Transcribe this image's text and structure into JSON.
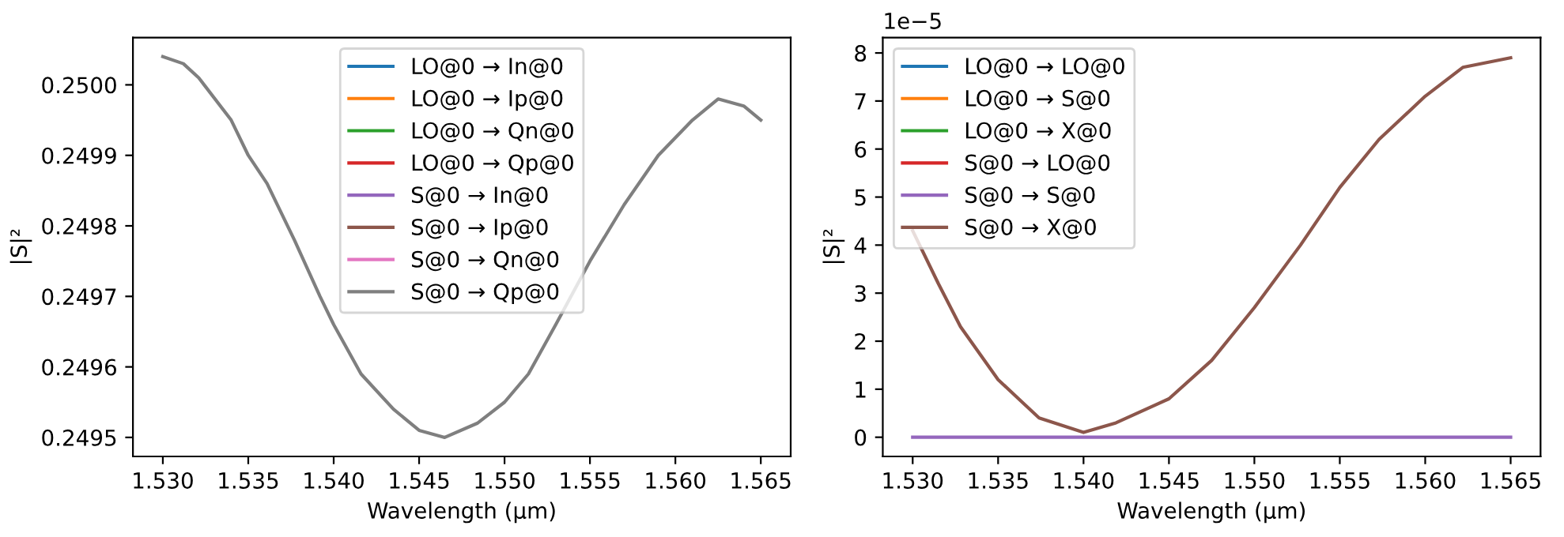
{
  "chart_data": [
    {
      "type": "line",
      "xlabel": "Wavelength (µm)",
      "ylabel": "|S|²",
      "legend": "top",
      "x": [
        1.53,
        1.5312,
        1.5321,
        1.534,
        1.535,
        1.5361,
        1.5377,
        1.5392,
        1.54,
        1.5416,
        1.5435,
        1.545,
        1.5465,
        1.5484,
        1.55,
        1.5514,
        1.553,
        1.555,
        1.557,
        1.559,
        1.561,
        1.5625,
        1.564,
        1.565
      ],
      "xlim": [
        1.52825,
        1.56675
      ],
      "xticks": [
        {
          "value": 1.53,
          "label": "1.530"
        },
        {
          "value": 1.535,
          "label": "1.535"
        },
        {
          "value": 1.54,
          "label": "1.540"
        },
        {
          "value": 1.545,
          "label": "1.545"
        },
        {
          "value": 1.55,
          "label": "1.550"
        },
        {
          "value": 1.555,
          "label": "1.555"
        },
        {
          "value": 1.56,
          "label": "1.560"
        },
        {
          "value": 1.565,
          "label": "1.565"
        }
      ],
      "ylim": [
        0.249473,
        0.250067
      ],
      "yticks": [
        {
          "value": 0.2495,
          "label": "0.2495"
        },
        {
          "value": 0.2496,
          "label": "0.2496"
        },
        {
          "value": 0.2497,
          "label": "0.2497"
        },
        {
          "value": 0.2498,
          "label": "0.2498"
        },
        {
          "value": 0.2499,
          "label": "0.2499"
        },
        {
          "value": 0.25,
          "label": "0.2500"
        }
      ],
      "series": [
        {
          "name": "LO@0 → In@0",
          "color": "#1f77b4",
          "values": [
            null,
            null,
            null,
            null,
            null,
            null,
            null,
            null,
            null,
            null,
            null,
            null,
            null,
            null,
            null,
            null,
            null,
            null,
            null,
            null,
            null,
            null,
            null,
            null
          ]
        },
        {
          "name": "LO@0 → Ip@0",
          "color": "#ff7f0e",
          "values": [
            null,
            null,
            null,
            null,
            null,
            null,
            null,
            null,
            null,
            null,
            null,
            null,
            null,
            null,
            null,
            null,
            null,
            null,
            null,
            null,
            null,
            null,
            null,
            null
          ]
        },
        {
          "name": "LO@0 → Qn@0",
          "color": "#2ca02c",
          "values": [
            null,
            null,
            null,
            null,
            null,
            null,
            null,
            null,
            null,
            null,
            null,
            null,
            null,
            null,
            null,
            null,
            null,
            null,
            null,
            null,
            null,
            null,
            null,
            null
          ]
        },
        {
          "name": "LO@0 → Qp@0",
          "color": "#d62728",
          "values": [
            null,
            null,
            null,
            null,
            null,
            null,
            null,
            null,
            null,
            null,
            null,
            null,
            null,
            null,
            null,
            null,
            null,
            null,
            null,
            null,
            null,
            null,
            null,
            null
          ]
        },
        {
          "name": "S@0 → In@0",
          "color": "#9467bd",
          "values": [
            null,
            null,
            null,
            null,
            null,
            null,
            null,
            null,
            null,
            null,
            null,
            null,
            null,
            null,
            null,
            null,
            null,
            null,
            null,
            null,
            null,
            null,
            null,
            null
          ]
        },
        {
          "name": "S@0 → Ip@0",
          "color": "#8c564b",
          "values": [
            null,
            null,
            null,
            null,
            null,
            null,
            null,
            null,
            null,
            null,
            null,
            null,
            null,
            null,
            null,
            null,
            null,
            null,
            null,
            null,
            null,
            null,
            null,
            null
          ]
        },
        {
          "name": "S@0 → Qn@0",
          "color": "#e377c2",
          "values": [
            null,
            null,
            null,
            null,
            null,
            null,
            null,
            null,
            null,
            null,
            null,
            null,
            null,
            null,
            null,
            null,
            null,
            null,
            null,
            null,
            null,
            null,
            null,
            null
          ]
        },
        {
          "name": "S@0 → Qp@0",
          "color": "#7f7f7f",
          "values": [
            0.25004,
            0.25003,
            0.25001,
            0.24995,
            0.2499,
            0.24986,
            0.24978,
            0.2497,
            0.24966,
            0.24959,
            0.24954,
            0.24951,
            0.2495,
            0.24952,
            0.24955,
            0.24959,
            0.24966,
            0.24975,
            0.24983,
            0.2499,
            0.24995,
            0.24998,
            0.24997,
            0.24995
          ]
        }
      ]
    },
    {
      "type": "line",
      "xlabel": "Wavelength (µm)",
      "ylabel": "|S|²",
      "legend": "top left",
      "annotations": [
        "1e−5"
      ],
      "x": [
        1.53,
        1.5315,
        1.5328,
        1.535,
        1.5374,
        1.54,
        1.5419,
        1.545,
        1.5475,
        1.55,
        1.5527,
        1.555,
        1.5573,
        1.56,
        1.5622,
        1.565
      ],
      "xlim": [
        1.52825,
        1.56675
      ],
      "xticks": [
        {
          "value": 1.53,
          "label": "1.530"
        },
        {
          "value": 1.535,
          "label": "1.535"
        },
        {
          "value": 1.54,
          "label": "1.540"
        },
        {
          "value": 1.545,
          "label": "1.545"
        },
        {
          "value": 1.55,
          "label": "1.550"
        },
        {
          "value": 1.555,
          "label": "1.555"
        },
        {
          "value": 1.56,
          "label": "1.560"
        },
        {
          "value": 1.565,
          "label": "1.565"
        }
      ],
      "ylim": [
        -0.4,
        8.32
      ],
      "yticks": [
        0,
        1,
        2,
        3,
        4,
        5,
        6,
        7,
        8
      ],
      "series": [
        {
          "name": "LO@0 → LO@0",
          "color": "#1f77b4",
          "values": [
            null,
            null,
            null,
            null,
            null,
            null,
            null,
            null,
            null,
            null,
            null,
            null,
            null,
            null,
            null,
            null
          ]
        },
        {
          "name": "LO@0 → S@0",
          "color": "#ff7f0e",
          "values": [
            null,
            null,
            null,
            null,
            null,
            null,
            null,
            null,
            null,
            null,
            null,
            null,
            null,
            null,
            null,
            null
          ]
        },
        {
          "name": "LO@0 → X@0",
          "color": "#2ca02c",
          "values": [
            null,
            null,
            null,
            null,
            null,
            null,
            null,
            null,
            null,
            null,
            null,
            null,
            null,
            null,
            null,
            null
          ]
        },
        {
          "name": "S@0 → LO@0",
          "color": "#d62728",
          "values": [
            null,
            null,
            null,
            null,
            null,
            null,
            null,
            null,
            null,
            null,
            null,
            null,
            null,
            null,
            null,
            null
          ]
        },
        {
          "name": "S@0 → S@0",
          "color": "#9467bd",
          "values": [
            0,
            0,
            0,
            0,
            0,
            0,
            0,
            0,
            0,
            0,
            0,
            0,
            0,
            0,
            0,
            0
          ]
        },
        {
          "name": "S@0 → X@0",
          "color": "#8c564b",
          "values": [
            4.3,
            3.2,
            2.3,
            1.2,
            0.4,
            0.1,
            0.3,
            0.8,
            1.6,
            2.7,
            4.0,
            5.2,
            6.2,
            7.1,
            7.7,
            7.9
          ]
        }
      ]
    }
  ]
}
